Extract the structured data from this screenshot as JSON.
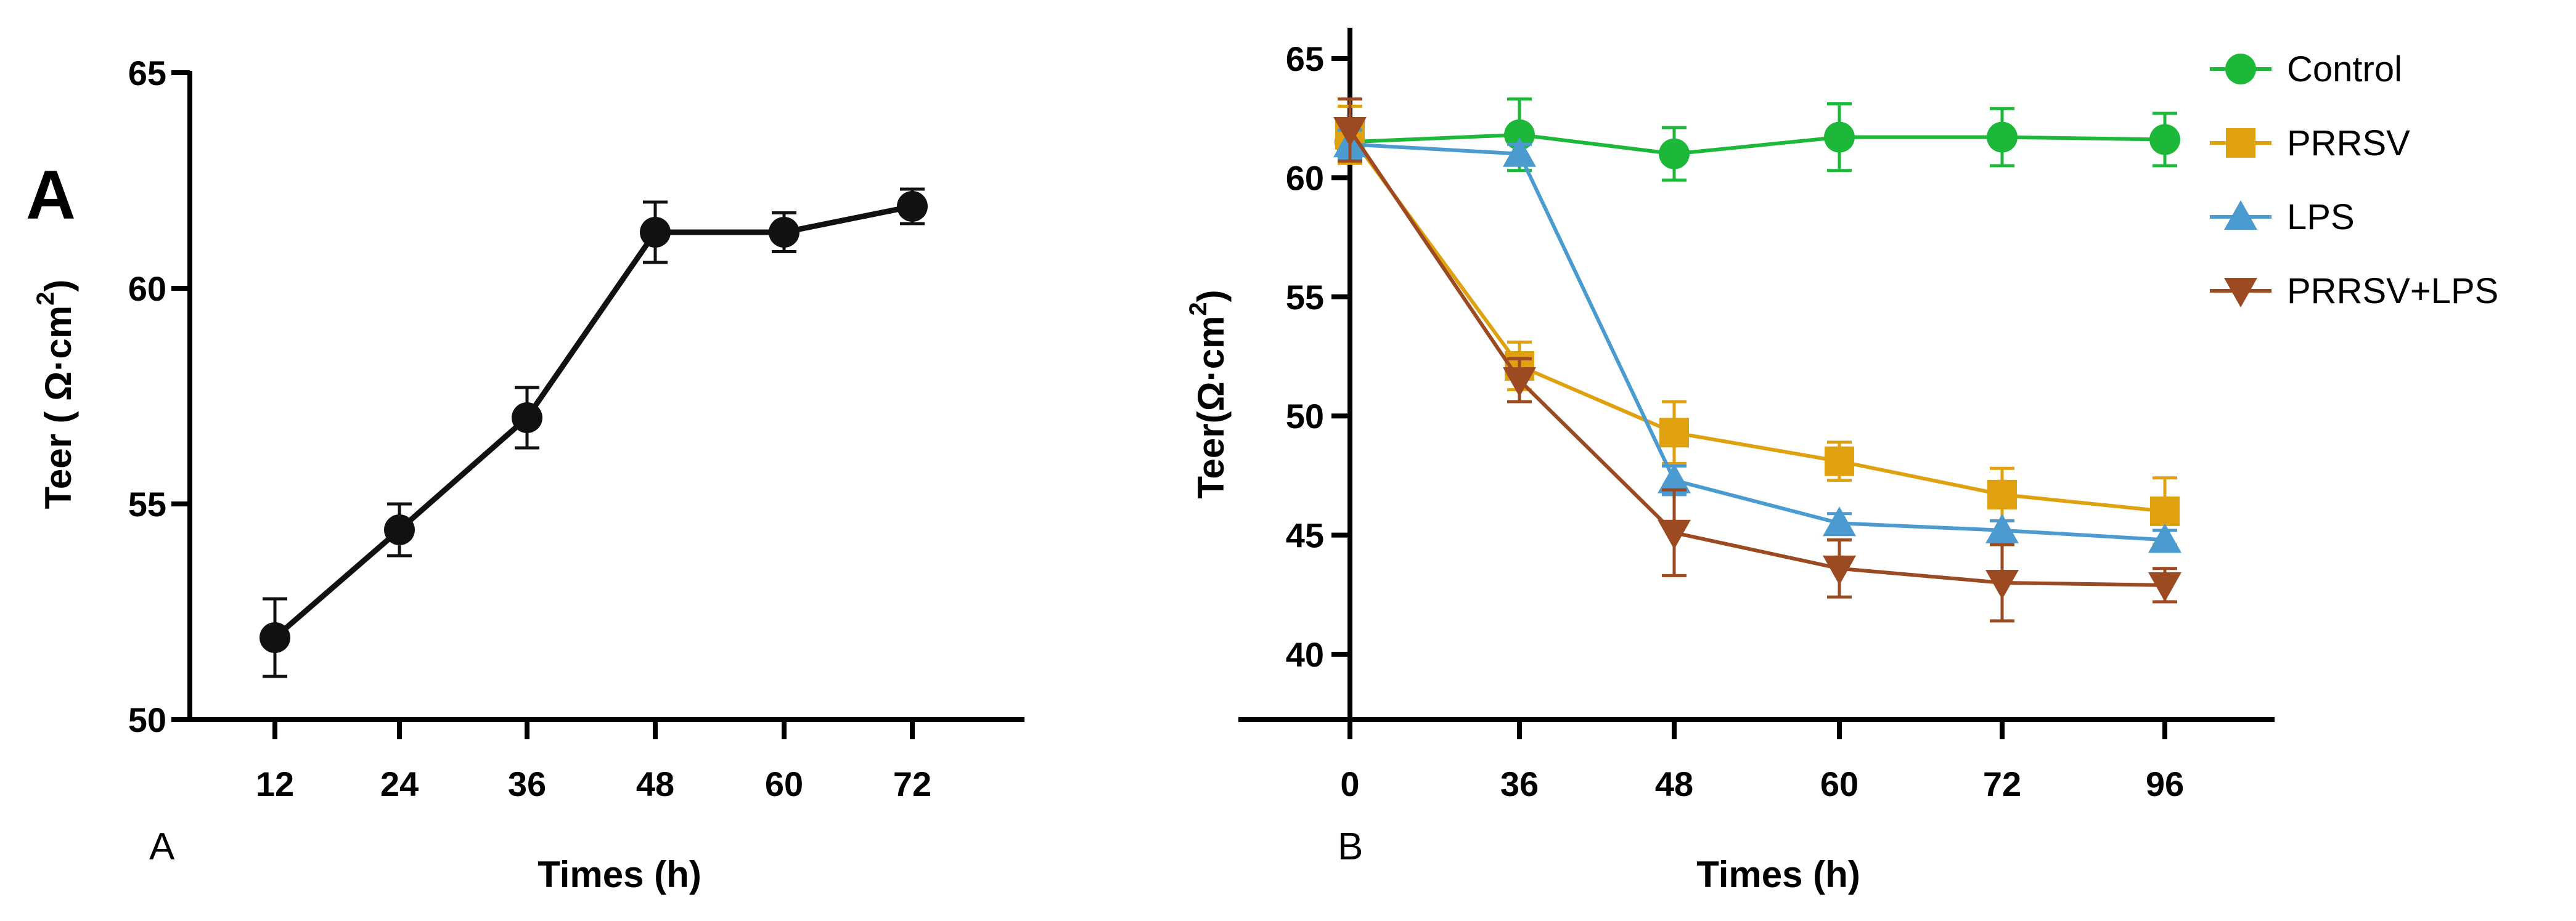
{
  "chart_data": [
    {
      "type": "line",
      "panel": "A",
      "corner_label": "A",
      "xlabel": "Times (h)",
      "ylabel": "Teer ( Ω·cm²)",
      "ylabel_main": "Teer ( Ω·cm",
      "ylabel_sup": "2",
      "ylabel_close": ")",
      "categories": [
        "12",
        "24",
        "36",
        "48",
        "60",
        "72"
      ],
      "ylim": [
        50,
        65
      ],
      "yticks": [
        "50",
        "55",
        "60",
        "65"
      ],
      "series": [
        {
          "name": "Teer",
          "color": "#111111",
          "marker": "circle",
          "values": [
            51.9,
            54.4,
            57.0,
            61.3,
            61.3,
            61.9
          ],
          "errors": [
            0.9,
            0.6,
            0.7,
            0.7,
            0.45,
            0.4
          ]
        }
      ]
    },
    {
      "type": "line",
      "panel": "B",
      "xlabel": "Times (h)",
      "ylabel": "Teer(Ω·cm²)",
      "ylabel_main": "Teer(Ω·cm",
      "ylabel_sup": "2",
      "ylabel_close": ")",
      "categories": [
        "0",
        "36",
        "48",
        "60",
        "72",
        "96"
      ],
      "ylim": [
        37,
        66
      ],
      "yticks": [
        "40",
        "45",
        "50",
        "55",
        "60",
        "65"
      ],
      "legend_position": "top-right",
      "series": [
        {
          "name": "Control",
          "color": "#1db83a",
          "marker": "circle",
          "values": [
            61.5,
            61.8,
            61.0,
            61.7,
            61.7,
            61.6
          ],
          "errors": [
            0.8,
            1.5,
            1.1,
            1.4,
            1.2,
            1.1
          ]
        },
        {
          "name": "PRRSV",
          "color": "#e0a111",
          "marker": "square",
          "values": [
            61.8,
            52.1,
            49.3,
            48.1,
            46.7,
            46.0
          ],
          "errors": [
            1.2,
            1.0,
            1.3,
            0.8,
            1.1,
            1.4
          ]
        },
        {
          "name": "LPS",
          "color": "#4b9bd0",
          "marker": "triangle-up",
          "values": [
            61.4,
            61.0,
            47.3,
            45.5,
            45.2,
            44.8
          ],
          "errors": [
            0.6,
            0.4,
            0.6,
            0.4,
            0.4,
            0.4
          ]
        },
        {
          "name": "PRRSV+LPS",
          "color": "#9b4a21",
          "marker": "triangle-down",
          "values": [
            62.0,
            51.5,
            45.1,
            43.6,
            43.0,
            42.9
          ],
          "errors": [
            1.3,
            0.9,
            1.8,
            1.2,
            1.6,
            0.7
          ]
        }
      ]
    }
  ],
  "captions": {
    "left": "A",
    "right": "B"
  }
}
